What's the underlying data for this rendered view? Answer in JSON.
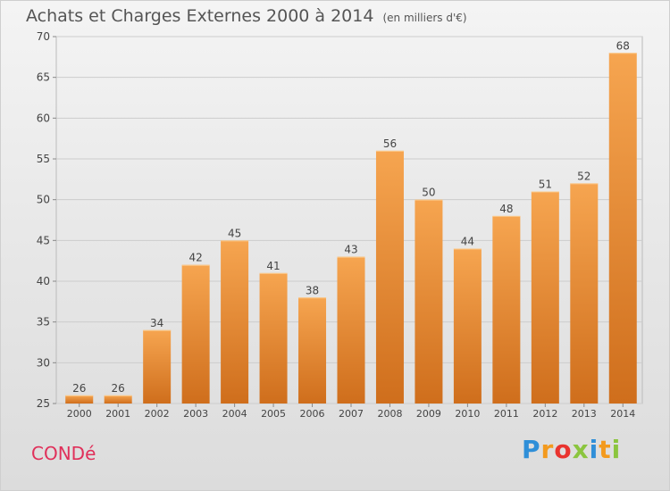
{
  "header": {
    "title": "Achats et Charges Externes 2000 à 2014",
    "unit": "(en milliers d'€)"
  },
  "footer": {
    "commune": "CONDé",
    "logo": [
      "P",
      "r",
      "o",
      "x",
      "i",
      "t",
      "i"
    ]
  },
  "colors": {
    "bar_top": "#f6a550",
    "bar_bottom": "#cf6e1c",
    "grid": "#cccccc",
    "axis_text": "#444444",
    "commune": "#e0305a"
  },
  "chart_data": {
    "type": "bar",
    "categories": [
      "2000",
      "2001",
      "2002",
      "2003",
      "2004",
      "2005",
      "2006",
      "2007",
      "2008",
      "2009",
      "2010",
      "2011",
      "2012",
      "2013",
      "2014"
    ],
    "values": [
      26,
      26,
      34,
      42,
      45,
      41,
      38,
      43,
      56,
      50,
      44,
      48,
      51,
      52,
      68
    ],
    "ylim": [
      25,
      70
    ],
    "yticks": [
      25,
      30,
      35,
      40,
      45,
      50,
      55,
      60,
      65,
      70
    ],
    "grid": true,
    "title": "Achats et Charges Externes 2000 à 2014",
    "xlabel": "",
    "ylabel": ""
  }
}
